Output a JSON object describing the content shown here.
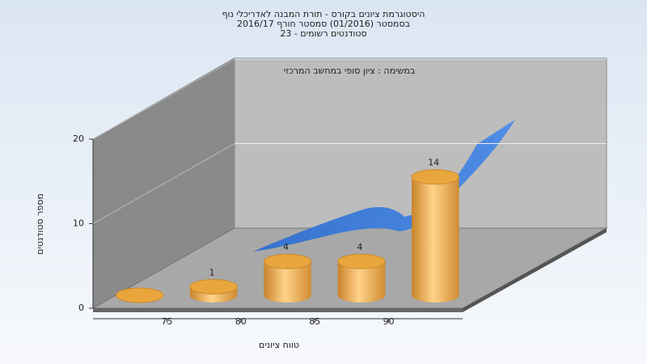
{
  "chart_data": {
    "type": "histogram",
    "title_lines": [
      "היסטוגרמת ציונים בקורס - תורת המבנה לאדריכלי נוף",
      "בסמסטר  (01/2016)  סמסטר חורף 2016/17",
      "סטודנטים רשומים - 23"
    ],
    "subtitle": "במשימה : ציון סופי במחשב המרכזי",
    "x_label": "טווח ציונים",
    "y_label": "מספר סטודנטים",
    "bins": [
      70,
      75,
      80,
      85,
      90,
      95
    ],
    "counts": [
      0,
      1,
      4,
      4,
      14
    ],
    "color": "#e8a63c",
    "xlim": [
      70,
      95
    ],
    "xticks": [
      75,
      80,
      85,
      90
    ],
    "ylim": [
      0,
      20
    ],
    "yticks": [
      0,
      10,
      20
    ],
    "grid": true
  }
}
